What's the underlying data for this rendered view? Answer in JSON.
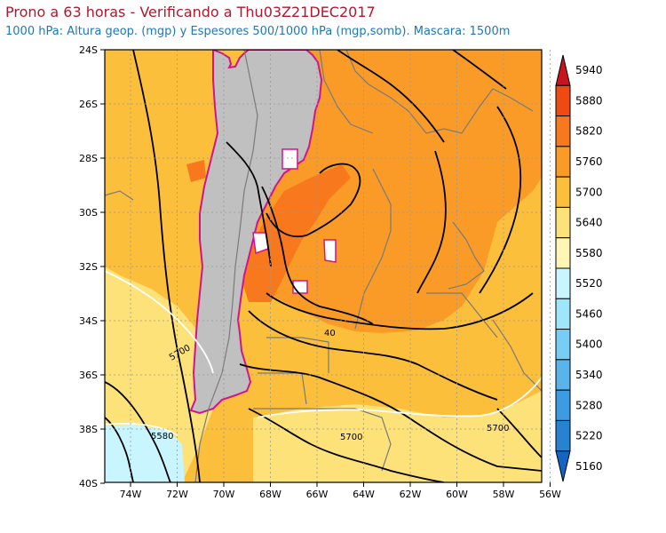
{
  "header": {
    "title": "Prono a 63 horas - Verificando a Thu03Z21DEC2017",
    "subtitle": "1000 hPa: Altura geop. (mgp) y Espesores 500/1000 hPa (mgp,somb). Mascara: 1500m"
  },
  "axes": {
    "lat_labels": [
      "24S",
      "26S",
      "28S",
      "30S",
      "32S",
      "34S",
      "36S",
      "38S",
      "40S"
    ],
    "lon_labels": [
      "74W",
      "72W",
      "70W",
      "68W",
      "66W",
      "64W",
      "62W",
      "60W",
      "58W",
      "56W"
    ]
  },
  "colorbar": {
    "levels": [
      "5940",
      "5880",
      "5820",
      "5760",
      "5700",
      "5640",
      "5580",
      "5520",
      "5460",
      "5400",
      "5340",
      "5280",
      "5220",
      "5160"
    ],
    "colors": [
      "#c8141e",
      "#f04a14",
      "#f8781e",
      "#fa9b28",
      "#fbbf3c",
      "#fde27a",
      "#fff5b4",
      "#c8f5ff",
      "#a0e6fa",
      "#78cdf5",
      "#5ab4eb",
      "#3c9be1",
      "#2882d2",
      "#1464c3"
    ]
  },
  "contour_labels": {
    "label_40": "40",
    "label_5700_a": "5700",
    "label_5700_b": "5700",
    "label_5700_c": "5700",
    "label_5580": "5580"
  },
  "colors": {
    "mask": "#c0c0c0",
    "mask_edge": "#d2148c",
    "contour": "#000000",
    "thickness_contour": "#ffffff",
    "border": "#7a7a7a"
  }
}
